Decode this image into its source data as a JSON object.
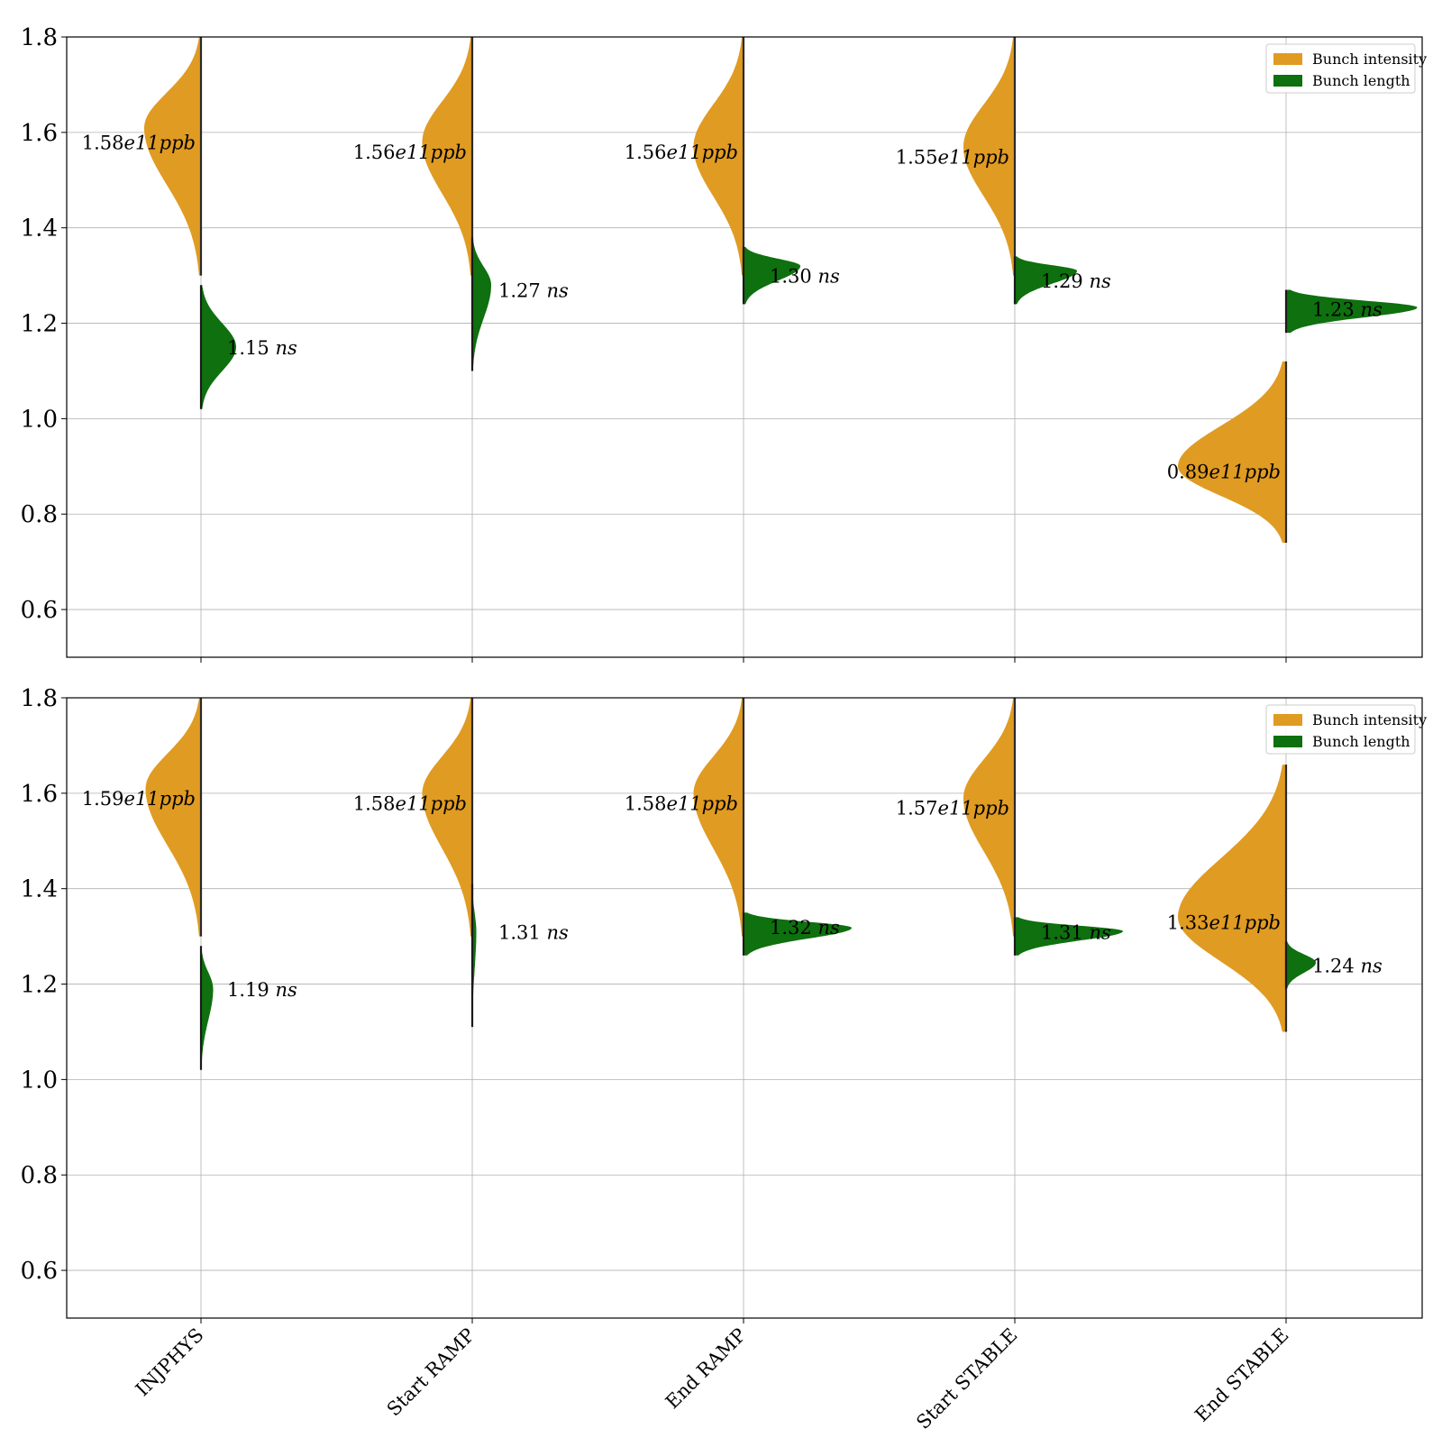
{
  "chart_data": {
    "type": "violin",
    "categories": [
      "INJPHYS",
      "Start RAMP",
      "End RAMP",
      "Start STABLE",
      "End STABLE"
    ],
    "ylim": [
      0.5,
      1.8
    ],
    "yticks": [
      "0.6",
      "0.8",
      "1.0",
      "1.2",
      "1.4",
      "1.6",
      "1.8"
    ],
    "grid": true,
    "legend_placement": "top-right",
    "series_styles": [
      {
        "name": "Bunch intensity",
        "color": "#e09b22",
        "side": "left"
      },
      {
        "name": "Bunch length",
        "color": "#0e700e",
        "side": "right"
      }
    ],
    "panels": [
      {
        "legend": [
          "Bunch intensity",
          "Bunch length"
        ],
        "intensity": [
          {
            "min": 1.3,
            "max": 1.8,
            "peak": 1.61,
            "width": 0.42,
            "label_num": "1.58",
            "label_unit": "e11ppb",
            "label_y": 1.58
          },
          {
            "min": 1.3,
            "max": 1.8,
            "peak": 1.58,
            "width": 0.37,
            "label_num": "1.56",
            "label_unit": "e11ppb",
            "label_y": 1.56
          },
          {
            "min": 1.3,
            "max": 1.8,
            "peak": 1.57,
            "width": 0.37,
            "label_num": "1.56",
            "label_unit": "e11ppb",
            "label_y": 1.56
          },
          {
            "min": 1.3,
            "max": 1.8,
            "peak": 1.57,
            "width": 0.38,
            "label_num": "1.55",
            "label_unit": "e11ppb",
            "label_y": 1.55
          },
          {
            "min": 0.74,
            "max": 1.12,
            "peak": 0.9,
            "width": 0.8,
            "label_num": "0.89",
            "label_unit": "e11ppb",
            "label_y": 0.89
          }
        ],
        "length": [
          {
            "min": 1.02,
            "max": 1.28,
            "peak": 1.15,
            "width": 0.26,
            "label_num": "1.15",
            "label_unit": "ns",
            "label_y": 1.15
          },
          {
            "min": 1.1,
            "max": 1.38,
            "peak": 1.28,
            "width": 0.14,
            "label_num": "1.27",
            "label_unit": "ns",
            "label_y": 1.27
          },
          {
            "min": 1.24,
            "max": 1.36,
            "peak": 1.32,
            "width": 0.42,
            "label_num": "1.30",
            "label_unit": "ns",
            "label_y": 1.3
          },
          {
            "min": 1.24,
            "max": 1.34,
            "peak": 1.31,
            "width": 0.46,
            "label_num": "1.29",
            "label_unit": "ns",
            "label_y": 1.29
          },
          {
            "min": 1.18,
            "max": 1.27,
            "peak": 1.233,
            "width": 0.97,
            "label_num": "1.23",
            "label_unit": "ns",
            "label_y": 1.23
          }
        ]
      },
      {
        "legend": [
          "Bunch intensity",
          "Bunch length"
        ],
        "intensity": [
          {
            "min": 1.3,
            "max": 1.8,
            "peak": 1.61,
            "width": 0.41,
            "label_num": "1.59",
            "label_unit": "e11ppb",
            "label_y": 1.59
          },
          {
            "min": 1.3,
            "max": 1.8,
            "peak": 1.6,
            "width": 0.37,
            "label_num": "1.58",
            "label_unit": "e11ppb",
            "label_y": 1.58
          },
          {
            "min": 1.3,
            "max": 1.8,
            "peak": 1.6,
            "width": 0.37,
            "label_num": "1.58",
            "label_unit": "e11ppb",
            "label_y": 1.58
          },
          {
            "min": 1.3,
            "max": 1.8,
            "peak": 1.59,
            "width": 0.38,
            "label_num": "1.57",
            "label_unit": "e11ppb",
            "label_y": 1.57
          },
          {
            "min": 1.1,
            "max": 1.66,
            "peak": 1.34,
            "width": 0.8,
            "label_num": "1.33",
            "label_unit": "e11ppb",
            "label_y": 1.33
          }
        ],
        "length": [
          {
            "min": 1.02,
            "max": 1.28,
            "peak": 1.19,
            "width": 0.09,
            "label_num": "1.19",
            "label_unit": "ns",
            "label_y": 1.19
          },
          {
            "min": 1.11,
            "max": 1.41,
            "peak": 1.31,
            "width": 0.03,
            "label_num": "1.31",
            "label_unit": "ns",
            "label_y": 1.31
          },
          {
            "min": 1.26,
            "max": 1.35,
            "peak": 1.318,
            "width": 0.8,
            "label_num": "1.32",
            "label_unit": "ns",
            "label_y": 1.32
          },
          {
            "min": 1.26,
            "max": 1.34,
            "peak": 1.311,
            "width": 0.8,
            "label_num": "1.31",
            "label_unit": "ns",
            "label_y": 1.31
          },
          {
            "min": 1.19,
            "max": 1.29,
            "peak": 1.245,
            "width": 0.22,
            "label_num": "1.24",
            "label_unit": "ns",
            "label_y": 1.24
          }
        ]
      }
    ]
  }
}
